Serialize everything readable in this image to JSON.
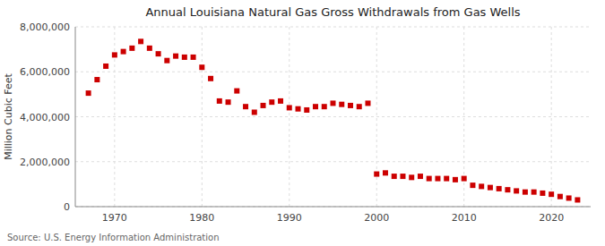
{
  "chart_data": {
    "type": "scatter",
    "title": "Annual Louisiana Natural Gas Gross Withdrawals from Gas Wells",
    "ylabel": "Million Cubic Feet",
    "source": "Source: U.S. Energy Information Administration",
    "color": "#cc0000",
    "marker": "square",
    "grid": true,
    "xlim": [
      1965.5,
      2024.5
    ],
    "xticks": [
      1970,
      1980,
      1990,
      2000,
      2010,
      2020
    ],
    "ylim": [
      0,
      8000000
    ],
    "yticks": [
      0,
      {
        "value": 2000000,
        "label": "2,000,000"
      },
      {
        "value": 4000000,
        "label": "4,000,000"
      },
      {
        "value": 6000000,
        "label": "6,000,000"
      },
      {
        "value": 8000000,
        "label": "8,000,000"
      }
    ],
    "x": [
      1967,
      1968,
      1969,
      1970,
      1971,
      1972,
      1973,
      1974,
      1975,
      1976,
      1977,
      1978,
      1979,
      1980,
      1981,
      1982,
      1983,
      1984,
      1985,
      1986,
      1987,
      1988,
      1989,
      1990,
      1991,
      1992,
      1993,
      1994,
      1995,
      1996,
      1997,
      1998,
      1999,
      2000,
      2001,
      2002,
      2003,
      2004,
      2005,
      2006,
      2007,
      2008,
      2009,
      2010,
      2011,
      2012,
      2013,
      2014,
      2015,
      2016,
      2017,
      2018,
      2019,
      2020,
      2021,
      2022,
      2023
    ],
    "values": [
      5050000,
      5650000,
      6250000,
      6750000,
      6900000,
      7050000,
      7350000,
      7050000,
      6800000,
      6500000,
      6700000,
      6650000,
      6650000,
      6200000,
      5700000,
      4700000,
      4650000,
      5150000,
      4450000,
      4200000,
      4500000,
      4650000,
      4700000,
      4400000,
      4350000,
      4300000,
      4450000,
      4450000,
      4600000,
      4550000,
      4500000,
      4450000,
      4600000,
      1450000,
      1500000,
      1350000,
      1350000,
      1300000,
      1350000,
      1250000,
      1250000,
      1250000,
      1200000,
      1250000,
      950000,
      900000,
      850000,
      800000,
      750000,
      700000,
      650000,
      650000,
      600000,
      550000,
      450000,
      380000,
      300000
    ]
  }
}
